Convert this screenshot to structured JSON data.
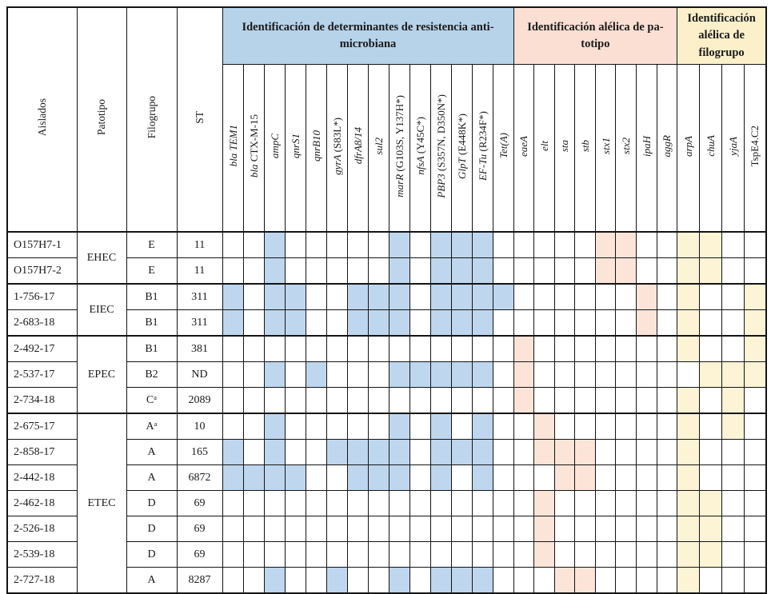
{
  "table": {
    "left_columns": [
      "Aislados",
      "Patotipo",
      "Filogrupo",
      "ST"
    ],
    "groups": {
      "resistance": {
        "label": "Identificación de determinantes de resistencia anti-microbiana",
        "header_color": "#b7d3ea",
        "cell_color": "#bed7ee"
      },
      "pathotype": {
        "label": "Identificación alélica de pa-totipo",
        "header_color": "#fadfd2",
        "cell_color": "#fce4d8"
      },
      "phylogroup": {
        "label": "Identificación alélica de filogrupo",
        "header_color": "#fbf0ca",
        "cell_color": "#fdf3d5"
      }
    },
    "resistance_genes": [
      {
        "it": "bla TEM1",
        "ro": ""
      },
      {
        "it": "bla",
        "ro": " CTX-M-15"
      },
      {
        "it": "ampC",
        "ro": ""
      },
      {
        "it": "qnrS1",
        "ro": ""
      },
      {
        "it": "qnrB10",
        "ro": ""
      },
      {
        "it": "gyrA",
        "ro": " (S83L*)"
      },
      {
        "it": "dfrA8/14",
        "ro": ""
      },
      {
        "it": "sul2",
        "ro": ""
      },
      {
        "it": "marR",
        "ro": " (G103S, Y137H*)"
      },
      {
        "it": "nfsA",
        "ro": " (Y45C*)"
      },
      {
        "it": "PBP3",
        "ro": " (S357N, D350N*)"
      },
      {
        "it": "GlpT",
        "ro": " (E448K*)"
      },
      {
        "it": "EF-Tu",
        "ro": " (R234F*)"
      },
      {
        "it": "Tet(A)",
        "ro": ""
      }
    ],
    "pathotype_genes": [
      {
        "it": "eaeA",
        "ro": ""
      },
      {
        "it": "elt",
        "ro": ""
      },
      {
        "it": "sta",
        "ro": ""
      },
      {
        "it": "stb",
        "ro": ""
      },
      {
        "it": "stx1",
        "ro": ""
      },
      {
        "it": "stx2",
        "ro": ""
      },
      {
        "it": "ipaH",
        "ro": ""
      },
      {
        "it": "aggR",
        "ro": ""
      }
    ],
    "phylogroup_genes": [
      {
        "it": "arpA",
        "ro": ""
      },
      {
        "it": "chuA",
        "ro": ""
      },
      {
        "it": "yjaA",
        "ro": ""
      },
      {
        "it": "",
        "ro": "TspE4.C2"
      }
    ],
    "pathotype_groups": [
      {
        "label": "EHEC",
        "span": 2
      },
      {
        "label": "EIEC",
        "span": 2
      },
      {
        "label": "EPEC",
        "span": 3
      },
      {
        "label": "ETEC",
        "span": 7
      }
    ],
    "rows": [
      {
        "aislado": "O157H7-1",
        "filogrupo": "E",
        "st": "11",
        "res": [
          2,
          8,
          10,
          11,
          12
        ],
        "pat": [
          4,
          5
        ],
        "phy": [
          0,
          1
        ]
      },
      {
        "aislado": "O157H7-2",
        "filogrupo": "E",
        "st": "11",
        "res": [
          2,
          8,
          10,
          11,
          12
        ],
        "pat": [
          4,
          5
        ],
        "phy": [
          0,
          1
        ]
      },
      {
        "aislado": "1-756-17",
        "filogrupo": "B1",
        "st": "311",
        "res": [
          0,
          2,
          3,
          6,
          7,
          8,
          10,
          11,
          12,
          13
        ],
        "pat": [
          6
        ],
        "phy": [
          0,
          3
        ]
      },
      {
        "aislado": "2-683-18",
        "filogrupo": "B1",
        "st": "311",
        "res": [
          0,
          2,
          3,
          6,
          7,
          8,
          10,
          11,
          12
        ],
        "pat": [
          6
        ],
        "phy": [
          0,
          3
        ]
      },
      {
        "aislado": "2-492-17",
        "filogrupo": "B1",
        "st": "381",
        "res": [],
        "pat": [
          0
        ],
        "phy": [
          0,
          3
        ]
      },
      {
        "aislado": "2-537-17",
        "filogrupo": "B2",
        "st": "ND",
        "res": [
          2,
          4,
          8,
          9,
          10,
          11,
          12
        ],
        "pat": [
          0
        ],
        "phy": [
          1,
          2,
          3
        ]
      },
      {
        "aislado": "2-734-18",
        "filogrupo": "Cᵃ",
        "st": "2089",
        "res": [],
        "pat": [
          0
        ],
        "phy": [
          0,
          2
        ]
      },
      {
        "aislado": "2-675-17",
        "filogrupo": "Aᵃ",
        "st": "10",
        "res": [
          2,
          8,
          10,
          12
        ],
        "pat": [
          1
        ],
        "phy": [
          0,
          2
        ]
      },
      {
        "aislado": "2-858-17",
        "filogrupo": "A",
        "st": "165",
        "res": [
          0,
          2,
          5,
          6,
          7,
          8,
          10,
          11,
          12
        ],
        "pat": [
          1,
          2,
          3
        ],
        "phy": [
          0
        ]
      },
      {
        "aislado": "2-442-18",
        "filogrupo": "A",
        "st": "6872",
        "res": [
          0,
          1,
          2,
          3,
          6,
          7,
          8,
          10,
          12
        ],
        "pat": [
          2,
          3
        ],
        "phy": [
          0
        ]
      },
      {
        "aislado": "2-462-18",
        "filogrupo": "D",
        "st": "69",
        "res": [],
        "pat": [
          1
        ],
        "phy": [
          0,
          1
        ]
      },
      {
        "aislado": "2-526-18",
        "filogrupo": "D",
        "st": "69",
        "res": [],
        "pat": [
          1
        ],
        "phy": [
          0,
          1
        ]
      },
      {
        "aislado": "2-539-18",
        "filogrupo": "D",
        "st": "69",
        "res": [],
        "pat": [
          1
        ],
        "phy": [
          0,
          1
        ]
      },
      {
        "aislado": "2-727-18",
        "filogrupo": "A",
        "st": "8287",
        "res": [
          2,
          5,
          8,
          10,
          11,
          12
        ],
        "pat": [
          2,
          3
        ],
        "phy": [
          0
        ]
      }
    ]
  }
}
